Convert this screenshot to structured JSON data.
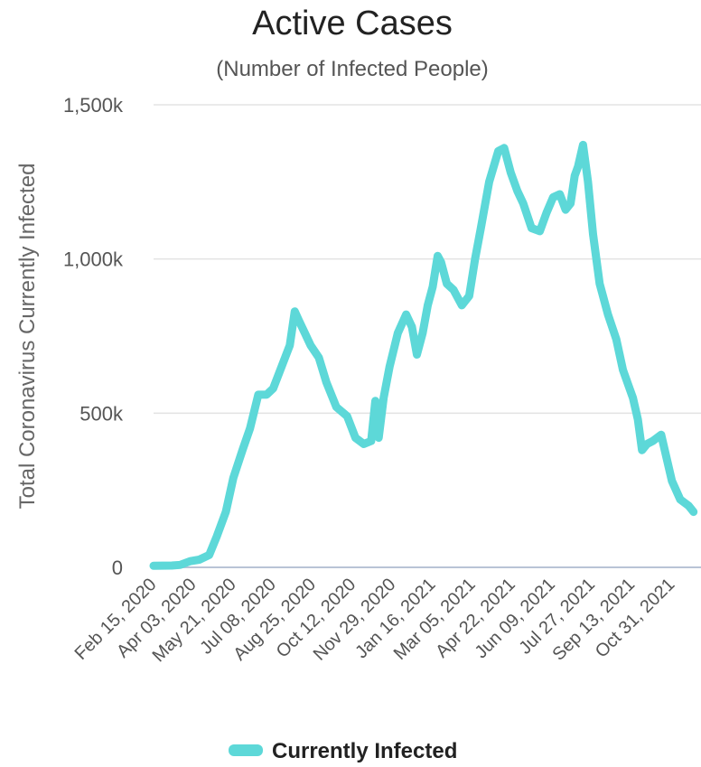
{
  "chart_data": {
    "type": "line",
    "title": "Active Cases",
    "subtitle": "(Number of Infected People)",
    "ylabel": "Total Coronavirus Currently Infected",
    "xlabel": "",
    "ylim": [
      0,
      1500000
    ],
    "yticks": [
      0,
      500000,
      1000000,
      1500000
    ],
    "ytick_labels": [
      "0",
      "500k",
      "1,000k",
      "1,500k"
    ],
    "xlim": [
      "2020-02-15",
      "2021-12-05"
    ],
    "xtick_dates": [
      "2020-02-15",
      "2020-04-03",
      "2020-05-21",
      "2020-07-08",
      "2020-08-25",
      "2020-10-12",
      "2020-11-29",
      "2021-01-16",
      "2021-03-05",
      "2021-04-22",
      "2021-06-09",
      "2021-07-27",
      "2021-09-13",
      "2021-10-31"
    ],
    "xtick_labels": [
      "Feb 15, 2020",
      "Apr 03, 2020",
      "May 21, 2020",
      "Jul 08, 2020",
      "Aug 25, 2020",
      "Oct 12, 2020",
      "Nov 29, 2020",
      "Jan 16, 2021",
      "Mar 05, 2021",
      "Apr 22, 2021",
      "Jun 09, 2021",
      "Jul 27, 2021",
      "Sep 13, 2021",
      "Oct 31, 2021"
    ],
    "grid": true,
    "legend": "bottom",
    "colors": {
      "series": "#5dd8d8",
      "grid": "#e3e3e3",
      "axis": "#b9c4d6"
    },
    "series": [
      {
        "name": "Currently Infected",
        "x": [
          "2020-02-15",
          "2020-03-08",
          "2020-03-18",
          "2020-03-30",
          "2020-04-10",
          "2020-04-22",
          "2020-05-01",
          "2020-05-12",
          "2020-05-21",
          "2020-06-01",
          "2020-06-10",
          "2020-06-20",
          "2020-06-30",
          "2020-07-08",
          "2020-07-18",
          "2020-07-28",
          "2020-08-03",
          "2020-08-08",
          "2020-08-15",
          "2020-08-22",
          "2020-09-01",
          "2020-09-10",
          "2020-09-22",
          "2020-10-05",
          "2020-10-15",
          "2020-10-25",
          "2020-11-03",
          "2020-11-08",
          "2020-11-12",
          "2020-11-18",
          "2020-11-25",
          "2020-12-05",
          "2020-12-15",
          "2020-12-22",
          "2020-12-28",
          "2021-01-04",
          "2021-01-10",
          "2021-01-16",
          "2021-01-22",
          "2021-01-26",
          "2021-02-02",
          "2021-02-10",
          "2021-02-20",
          "2021-03-01",
          "2021-03-08",
          "2021-03-15",
          "2021-03-25",
          "2021-04-05",
          "2021-04-12",
          "2021-04-20",
          "2021-04-28",
          "2021-05-05",
          "2021-05-15",
          "2021-05-25",
          "2021-06-02",
          "2021-06-10",
          "2021-06-18",
          "2021-06-25",
          "2021-07-01",
          "2021-07-06",
          "2021-07-10",
          "2021-07-16",
          "2021-07-22",
          "2021-07-28",
          "2021-08-05",
          "2021-08-15",
          "2021-08-25",
          "2021-09-02",
          "2021-09-10",
          "2021-09-14",
          "2021-09-20",
          "2021-09-25",
          "2021-10-01",
          "2021-10-08",
          "2021-10-18",
          "2021-10-31",
          "2021-11-10",
          "2021-11-20",
          "2021-11-26"
        ],
        "values": [
          5000,
          6000,
          8000,
          20000,
          25000,
          40000,
          100000,
          180000,
          290000,
          380000,
          450000,
          560000,
          560000,
          580000,
          650000,
          720000,
          830000,
          800000,
          760000,
          720000,
          680000,
          600000,
          520000,
          490000,
          420000,
          400000,
          410000,
          540000,
          420000,
          550000,
          650000,
          760000,
          820000,
          780000,
          690000,
          760000,
          850000,
          910000,
          1010000,
          990000,
          920000,
          900000,
          850000,
          880000,
          1000000,
          1100000,
          1250000,
          1350000,
          1360000,
          1280000,
          1220000,
          1180000,
          1100000,
          1090000,
          1150000,
          1200000,
          1210000,
          1160000,
          1180000,
          1270000,
          1300000,
          1370000,
          1250000,
          1080000,
          920000,
          820000,
          740000,
          640000,
          580000,
          550000,
          480000,
          380000,
          400000,
          410000,
          430000,
          280000,
          220000,
          200000,
          180000
        ]
      }
    ]
  }
}
